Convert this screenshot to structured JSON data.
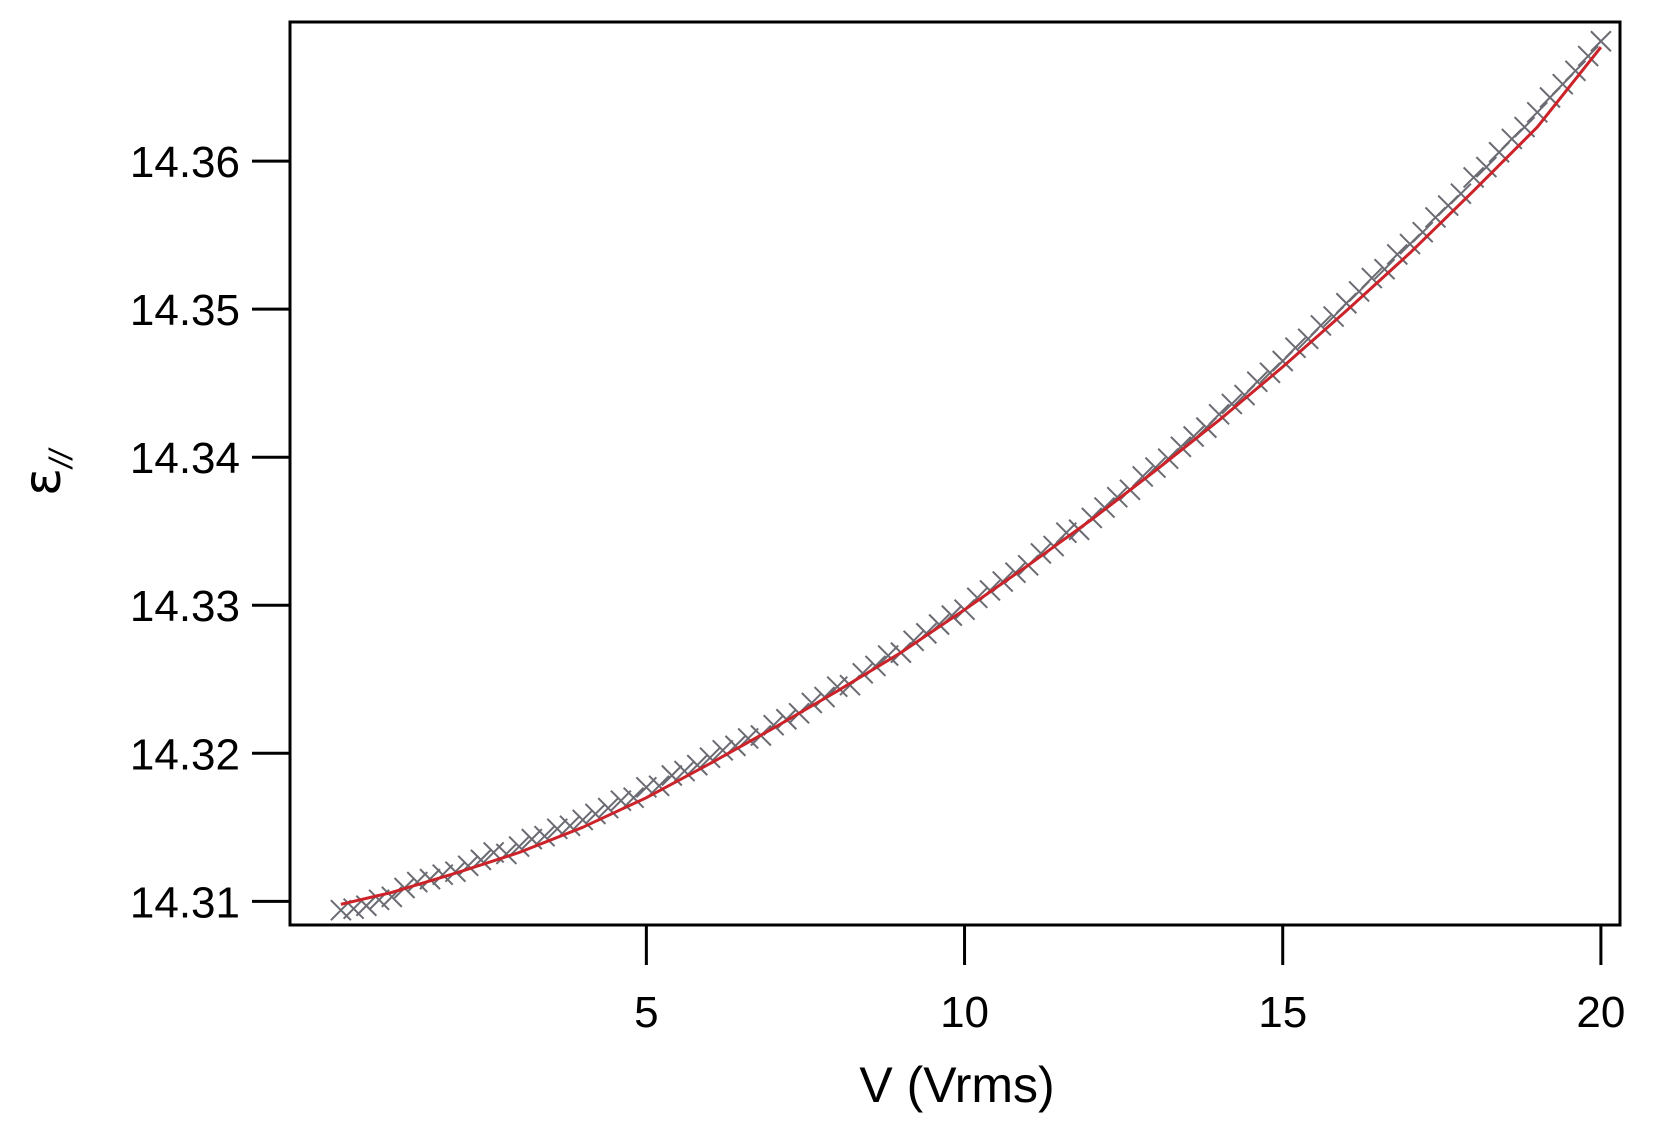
{
  "chart_data": {
    "type": "scatter",
    "xlabel": "V (Vrms)",
    "ylabel": "ε",
    "ylabel_subscript": "//",
    "xlim": [
      -0.6,
      20.3
    ],
    "ylim": [
      14.3084,
      14.3694
    ],
    "x_ticks": [
      5,
      10,
      15,
      20
    ],
    "x_tick_labels": [
      "5",
      "10",
      "15",
      "20"
    ],
    "y_ticks": [
      14.31,
      14.32,
      14.33,
      14.34,
      14.35,
      14.36
    ],
    "y_tick_labels": [
      "14.31",
      "14.32",
      "14.33",
      "14.34",
      "14.35",
      "14.36"
    ],
    "grid": false,
    "series": [
      {
        "kind": "markers",
        "marker": "x",
        "color": "#6b6b73",
        "x": [
          0.2,
          0.4,
          0.6,
          0.8,
          1.0,
          1.2,
          1.4,
          1.6,
          1.8,
          2.0,
          2.2,
          2.4,
          2.6,
          2.8,
          3.0,
          3.2,
          3.4,
          3.6,
          3.8,
          4.0,
          4.2,
          4.4,
          4.6,
          4.8,
          5.0,
          5.2,
          5.4,
          5.6,
          5.8,
          6.0,
          6.2,
          6.4,
          6.6,
          6.8,
          7.0,
          7.2,
          7.4,
          7.6,
          7.8,
          8.0,
          8.2,
          8.4,
          8.6,
          8.8,
          9.0,
          9.2,
          9.4,
          9.6,
          9.8,
          10.0,
          10.2,
          10.4,
          10.6,
          10.8,
          11.0,
          11.2,
          11.4,
          11.6,
          11.8,
          12.0,
          12.2,
          12.4,
          12.6,
          12.8,
          13.0,
          13.2,
          13.4,
          13.6,
          13.8,
          14.0,
          14.2,
          14.4,
          14.6,
          14.8,
          15.0,
          15.2,
          15.4,
          15.6,
          15.8,
          16.0,
          16.2,
          16.4,
          16.6,
          16.8,
          17.0,
          17.2,
          17.4,
          17.6,
          17.8,
          18.0,
          18.2,
          18.4,
          18.6,
          18.8,
          19.0,
          19.2,
          19.4,
          19.6,
          19.8,
          20.0
        ],
        "y": [
          14.3094,
          14.3095,
          14.3097,
          14.3101,
          14.3103,
          14.3109,
          14.3113,
          14.3115,
          14.3118,
          14.312,
          14.3124,
          14.3128,
          14.3133,
          14.3132,
          14.3137,
          14.3142,
          14.3144,
          14.3149,
          14.3151,
          14.3155,
          14.3159,
          14.3163,
          14.3168,
          14.317,
          14.3177,
          14.3178,
          14.3185,
          14.3188,
          14.3192,
          14.3197,
          14.3202,
          14.3205,
          14.321,
          14.3212,
          14.3219,
          14.3223,
          14.3227,
          14.3234,
          14.3238,
          14.3245,
          14.3246,
          14.3254,
          14.3259,
          14.3266,
          14.3268,
          14.3276,
          14.3281,
          14.3287,
          14.3293,
          14.3297,
          14.3305,
          14.331,
          14.3316,
          14.3322,
          14.3327,
          14.3335,
          14.334,
          14.3349,
          14.3351,
          14.3359,
          14.3366,
          14.3373,
          14.3378,
          14.3387,
          14.3393,
          14.3399,
          14.3407,
          14.3414,
          14.342,
          14.3429,
          14.3436,
          14.3442,
          14.3451,
          14.3457,
          14.3465,
          14.3474,
          14.348,
          14.3489,
          14.3495,
          14.3504,
          14.3512,
          14.3521,
          14.3527,
          14.3537,
          14.3544,
          14.3552,
          14.3562,
          14.357,
          14.3578,
          14.3589,
          14.3596,
          14.3606,
          14.3615,
          14.3623,
          14.3633,
          14.3643,
          14.3652,
          14.3661,
          14.3671,
          14.3681
        ]
      },
      {
        "kind": "fit-line",
        "color": "#cc2229",
        "x": [
          0.2,
          1.0,
          2.0,
          3.0,
          4.0,
          5.0,
          6.0,
          7.0,
          8.0,
          9.0,
          10.0,
          11.0,
          12.0,
          13.0,
          14.0,
          15.0,
          16.0,
          17.0,
          18.0,
          19.0,
          20.0
        ],
        "y": [
          14.3098,
          14.3106,
          14.3119,
          14.3133,
          14.315,
          14.317,
          14.3193,
          14.3217,
          14.3242,
          14.3268,
          14.3297,
          14.3327,
          14.3358,
          14.3391,
          14.3425,
          14.3461,
          14.3499,
          14.3538,
          14.358,
          14.3623,
          14.3677
        ]
      }
    ]
  }
}
